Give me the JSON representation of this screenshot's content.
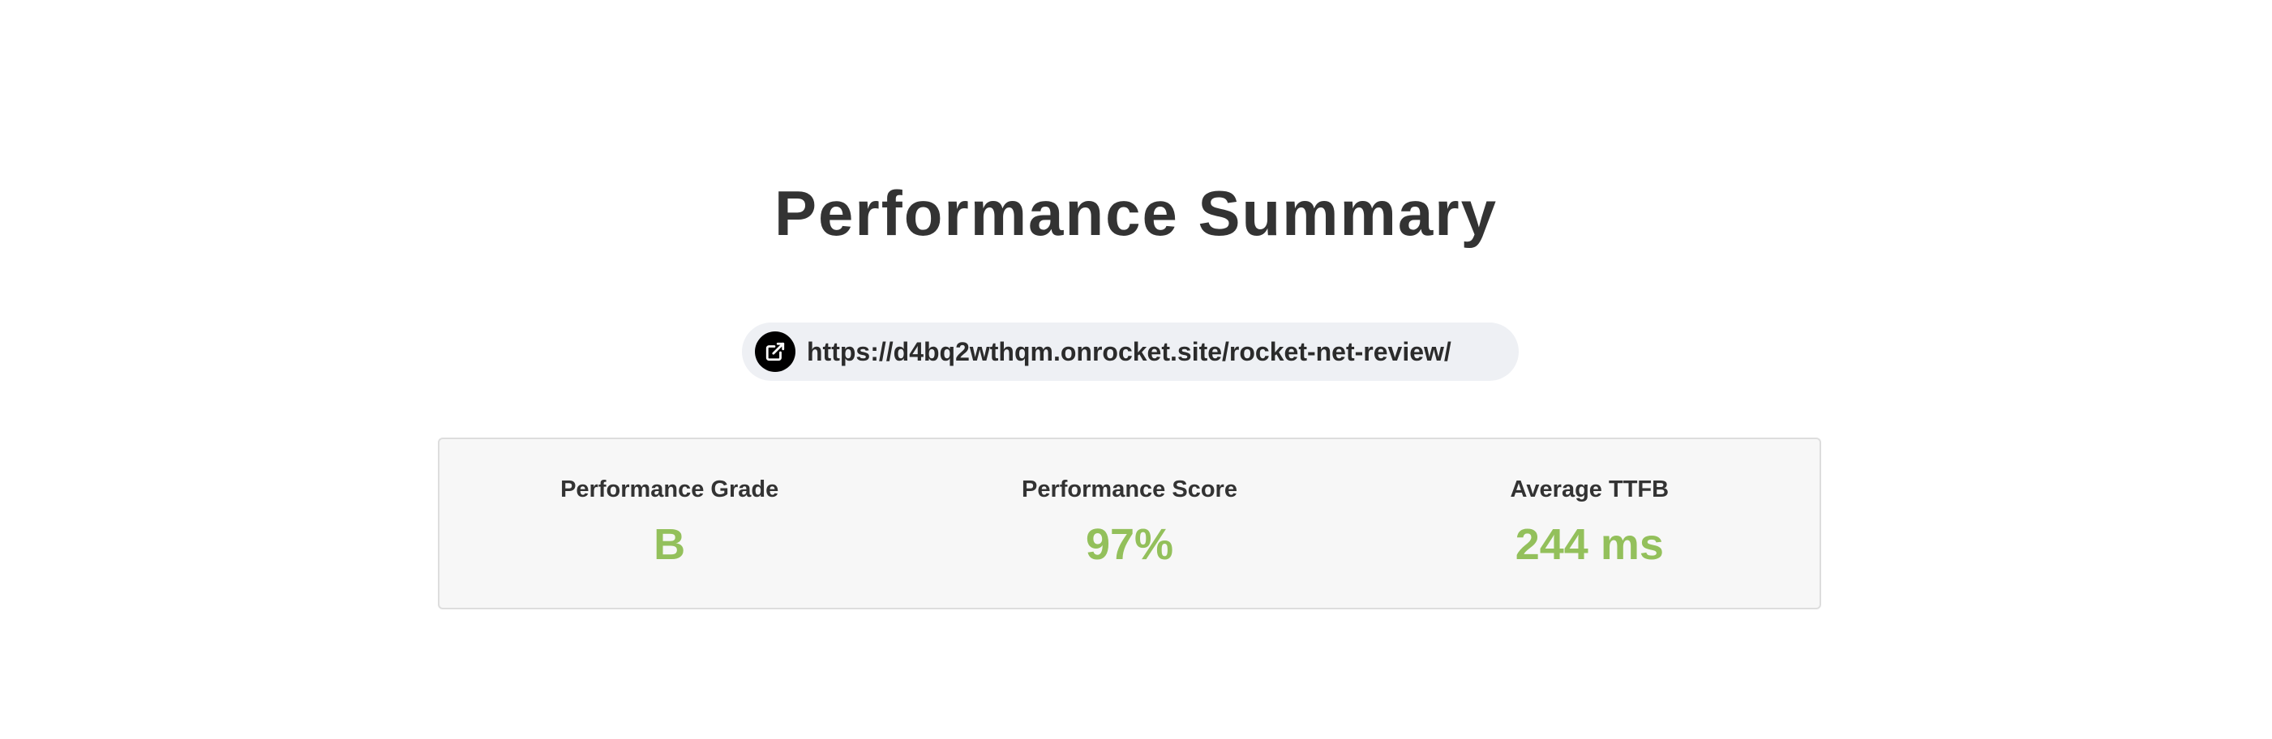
{
  "header": {
    "title": "Performance Summary"
  },
  "url_pill": {
    "icon": "external-link-icon",
    "url": "https://d4bq2wthqm.onrocket.site/rocket-net-review/"
  },
  "metrics": [
    {
      "label": "Performance Grade",
      "value": "B"
    },
    {
      "label": "Performance Score",
      "value": "97%"
    },
    {
      "label": "Average TTFB",
      "value": "244 ms"
    }
  ],
  "colors": {
    "value_green": "#93c05b",
    "title": "#333333",
    "pill_bg": "#eef0f4",
    "box_bg": "#f7f7f7"
  }
}
